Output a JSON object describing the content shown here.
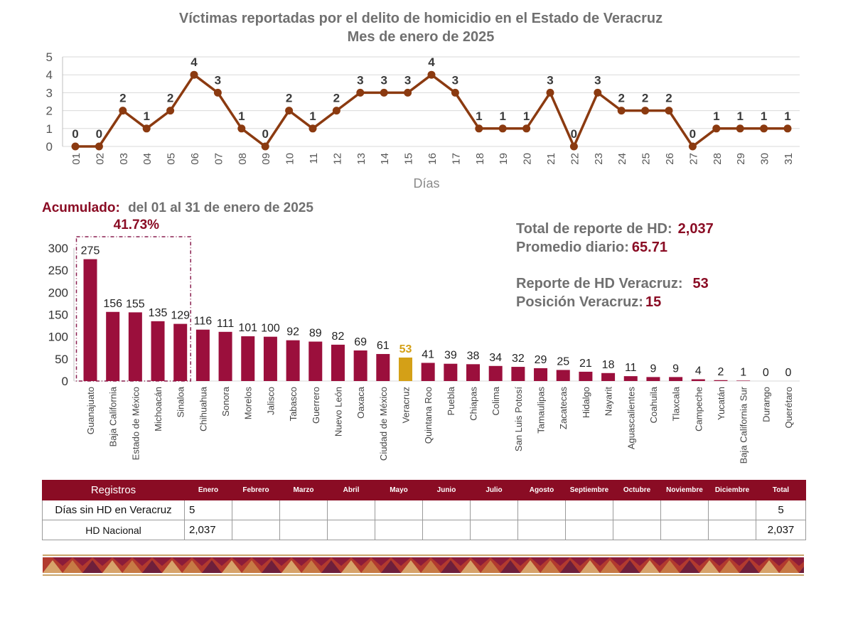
{
  "header": {
    "title": "Víctimas reportadas por el delito de homicidio en el Estado de Veracruz",
    "subtitle": "Mes de enero de 2025"
  },
  "colors": {
    "line": "#8b3a10",
    "bar": "#9b0f3c",
    "highlight": "#d4a017",
    "accent": "#8a0c24",
    "text_gray": "#707070"
  },
  "chart_data": [
    {
      "type": "line",
      "title": "Víctimas reportadas por el delito de homicidio en el Estado de Veracruz",
      "subtitle": "Mes de enero de 2025",
      "xlabel": "Días",
      "ylabel": "",
      "ylim": [
        0,
        5
      ],
      "yticks": [
        0,
        1,
        2,
        3,
        4,
        5
      ],
      "grid": true,
      "x": [
        "01",
        "02",
        "03",
        "04",
        "05",
        "06",
        "07",
        "08",
        "09",
        "10",
        "11",
        "12",
        "13",
        "14",
        "15",
        "16",
        "17",
        "18",
        "19",
        "20",
        "21",
        "22",
        "23",
        "24",
        "25",
        "26",
        "27",
        "28",
        "29",
        "30",
        "31"
      ],
      "series": [
        {
          "values": [
            0,
            0,
            2,
            1,
            2,
            4,
            3,
            1,
            0,
            2,
            1,
            2,
            3,
            3,
            3,
            4,
            3,
            1,
            1,
            1,
            3,
            0,
            3,
            2,
            2,
            2,
            0,
            1,
            1,
            1,
            1
          ]
        }
      ]
    },
    {
      "type": "bar",
      "title": "Acumulado:",
      "subtitle": "del 01 al 31 de enero de 2025",
      "xlabel": "",
      "ylabel": "",
      "ylim": [
        0,
        300
      ],
      "yticks": [
        0,
        50,
        100,
        150,
        200,
        250,
        300
      ],
      "grid": false,
      "highlight_category": "Veracruz",
      "categories": [
        "Guanajuato",
        "Baja California",
        "Estado de México",
        "Michoacán",
        "Sinaloa",
        "Chihuahua",
        "Sonora",
        "Morelos",
        "Jalisco",
        "Tabasco",
        "Guerrero",
        "Nuevo León",
        "Oaxaca",
        "Ciudad de México",
        "Veracruz",
        "Quintana Roo",
        "Puebla",
        "Chiapas",
        "Colima",
        "San Luis Potosí",
        "Tamaulipas",
        "Zacatecas",
        "Hidalgo",
        "Nayarit",
        "Aguascalientes",
        "Coahuila",
        "Tlaxcala",
        "Campeche",
        "Yucatán",
        "Baja California Sur",
        "Durango",
        "Querétaro"
      ],
      "values": [
        275,
        156,
        155,
        135,
        129,
        116,
        111,
        101,
        100,
        92,
        89,
        82,
        69,
        61,
        53,
        41,
        39,
        38,
        34,
        32,
        29,
        25,
        21,
        18,
        11,
        9,
        9,
        4,
        2,
        1,
        0,
        0
      ],
      "annotations": [
        {
          "text": "41.73%",
          "spans": [
            "Guanajuato",
            "Baja California",
            "Estado de México",
            "Michoacán",
            "Sinaloa"
          ]
        }
      ]
    }
  ],
  "summary": {
    "total_label": "Total de reporte de HD:",
    "total_value": "2,037",
    "avg_label": "Promedio diario:",
    "avg_value": "65.71",
    "ver_label": "Reporte de HD Veracruz:",
    "ver_value": "53",
    "pos_label": "Posición Veracruz:",
    "pos_value": "15"
  },
  "table": {
    "headers": [
      "Registros",
      "Enero",
      "Febrero",
      "Marzo",
      "Abril",
      "Mayo",
      "Junio",
      "Julio",
      "Agosto",
      "Septiembre",
      "Octubre",
      "Noviembre",
      "Diciembre",
      "Total"
    ],
    "rows": [
      {
        "label": "Días sin HD en Veracruz",
        "cells": [
          "5",
          "",
          "",
          "",
          "",
          "",
          "",
          "",
          "",
          "",
          "",
          ""
        ],
        "total": "5"
      },
      {
        "label": "HD Nacional",
        "cells": [
          "2,037",
          "",
          "",
          "",
          "",
          "",
          "",
          "",
          "",
          "",
          "",
          ""
        ],
        "total": "2,037"
      }
    ]
  }
}
